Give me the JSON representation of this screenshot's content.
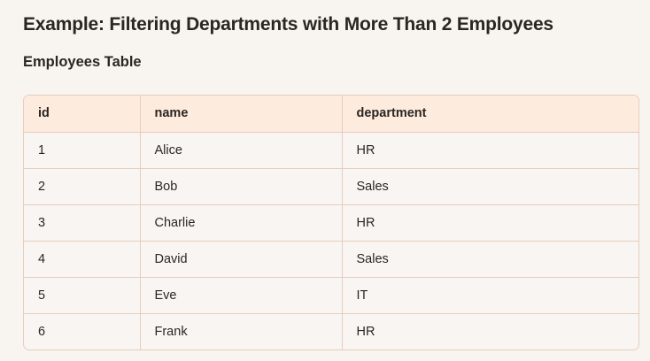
{
  "page": {
    "title": "Example: Filtering Departments with More Than 2 Employees",
    "subtitle": "Employees Table"
  },
  "table": {
    "columns": [
      "id",
      "name",
      "department"
    ],
    "rows": [
      [
        "1",
        "Alice",
        "HR"
      ],
      [
        "2",
        "Bob",
        "Sales"
      ],
      [
        "3",
        "Charlie",
        "HR"
      ],
      [
        "4",
        "David",
        "Sales"
      ],
      [
        "5",
        "Eve",
        "IT"
      ],
      [
        "6",
        "Frank",
        "HR"
      ]
    ]
  },
  "colors": {
    "background": "#f8f4f0",
    "header_bg": "#fdebde",
    "border": "#e6cdbd"
  }
}
